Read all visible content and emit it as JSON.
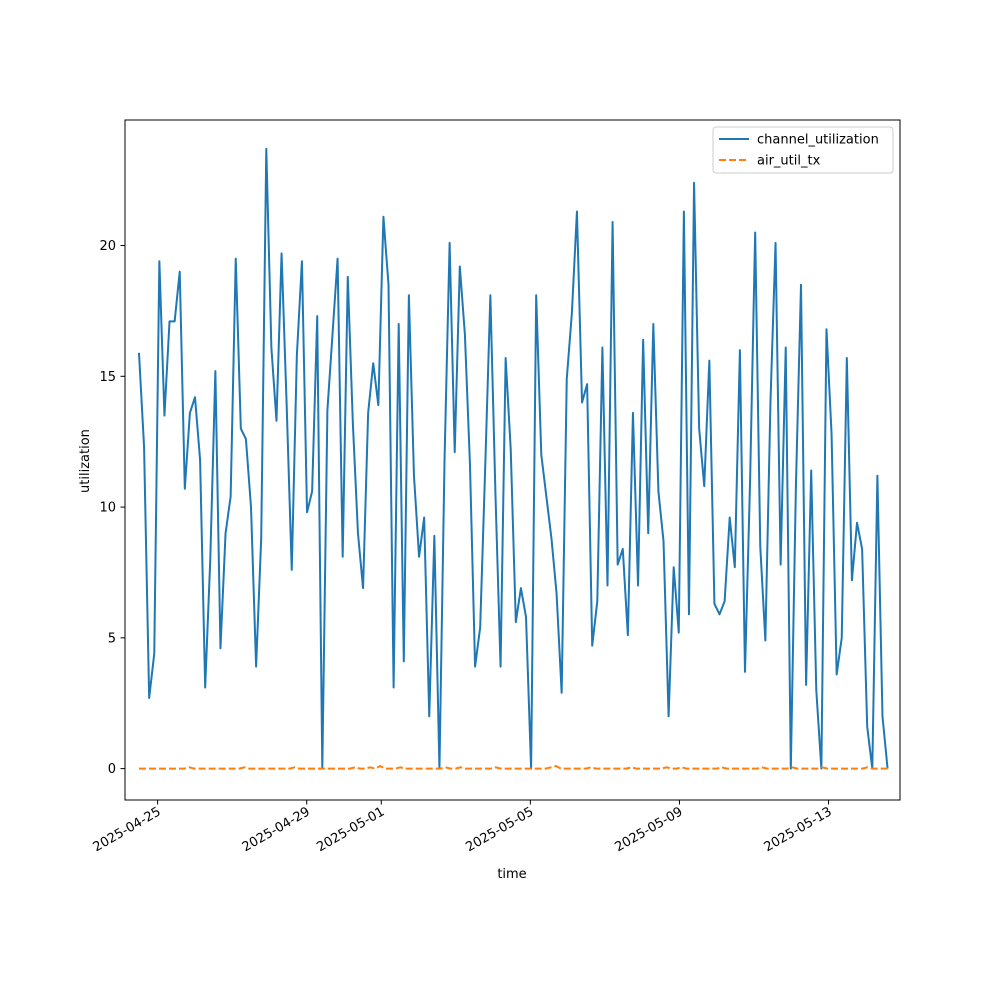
{
  "chart_data": {
    "type": "line",
    "title": "",
    "xlabel": "time",
    "ylabel": "utilization",
    "x_axis_type": "date",
    "x_start": "2025-04-24T12:00",
    "x_end": "2025-05-14T14:00",
    "xlim": [
      "2025-04-24T03:00",
      "2025-05-14T22:00"
    ],
    "ylim": [
      -1.2,
      24.8
    ],
    "x_ticks": [
      "2025-04-25",
      "2025-04-29",
      "2025-05-01",
      "2025-05-05",
      "2025-05-09",
      "2025-05-13"
    ],
    "y_ticks": [
      0,
      5,
      10,
      15,
      20
    ],
    "grid": false,
    "legend_position": "top-right",
    "series": [
      {
        "name": "channel_utilization",
        "color": "#1f77b4",
        "style": "solid",
        "values": [
          15.9,
          12.3,
          2.7,
          4.4,
          19.4,
          13.5,
          17.1,
          17.1,
          19.0,
          10.7,
          13.6,
          14.2,
          11.8,
          3.1,
          8.0,
          15.2,
          4.6,
          9.0,
          10.4,
          19.5,
          13.0,
          12.6,
          10.0,
          3.9,
          8.8,
          23.7,
          16.1,
          13.3,
          19.7,
          13.9,
          7.6,
          15.8,
          19.4,
          9.8,
          10.6,
          17.3,
          0.0,
          13.7,
          16.6,
          19.5,
          8.1,
          18.8,
          13.2,
          9.0,
          6.9,
          13.6,
          15.5,
          13.9,
          21.1,
          18.5,
          3.1,
          17.0,
          4.1,
          18.1,
          11.2,
          8.1,
          9.6,
          2.0,
          8.9,
          0.0,
          11.8,
          20.1,
          12.1,
          19.2,
          16.6,
          11.6,
          3.9,
          5.4,
          11.6,
          18.1,
          10.5,
          3.9,
          15.7,
          12.2,
          5.6,
          6.9,
          5.8,
          0.0,
          18.1,
          12.0,
          10.4,
          8.8,
          6.7,
          2.9,
          14.9,
          17.4,
          21.3,
          14.0,
          14.7,
          4.7,
          6.4,
          16.1,
          7.0,
          20.9,
          7.8,
          8.4,
          5.1,
          13.6,
          7.0,
          16.4,
          9.0,
          17.0,
          10.6,
          8.7,
          2.0,
          7.7,
          5.2,
          21.3,
          5.9,
          22.4,
          13.0,
          10.8,
          15.6,
          6.3,
          5.9,
          6.4,
          9.6,
          7.7,
          16.0,
          3.7,
          11.0,
          20.5,
          8.5,
          4.9,
          14.0,
          20.1,
          7.8,
          16.1,
          0.0,
          10.8,
          18.5,
          3.2,
          11.4,
          3.0,
          0.0,
          16.8,
          12.8,
          3.6,
          5.0,
          15.7,
          7.2,
          9.4,
          8.4,
          1.6,
          0.0,
          11.2,
          2.0,
          0.0
        ]
      },
      {
        "name": "air_util_tx",
        "color": "#ff7f0e",
        "style": "dashed",
        "values": [
          0.0,
          0.0,
          0.0,
          0.0,
          0.0,
          0.0,
          0.0,
          0.0,
          0.0,
          0.0,
          0.05,
          0.0,
          0.0,
          0.0,
          0.0,
          0.0,
          0.0,
          0.0,
          0.0,
          0.0,
          0.0,
          0.05,
          0.0,
          0.0,
          0.0,
          0.0,
          0.0,
          0.0,
          0.0,
          0.0,
          0.0,
          0.05,
          0.0,
          0.0,
          0.0,
          0.0,
          0.0,
          0.0,
          0.0,
          0.0,
          0.0,
          0.0,
          0.0,
          0.05,
          0.0,
          0.0,
          0.05,
          0.0,
          0.1,
          0.0,
          0.0,
          0.0,
          0.05,
          0.0,
          0.0,
          0.0,
          0.0,
          0.0,
          0.0,
          0.0,
          0.0,
          0.05,
          0.0,
          0.0,
          0.05,
          0.0,
          0.0,
          0.0,
          0.0,
          0.0,
          0.0,
          0.05,
          0.0,
          0.0,
          0.0,
          0.0,
          0.0,
          0.0,
          0.0,
          0.0,
          0.0,
          0.0,
          0.05,
          0.1,
          0.0,
          0.0,
          0.0,
          0.0,
          0.0,
          0.0,
          0.05,
          0.0,
          0.0,
          0.0,
          0.0,
          0.0,
          0.0,
          0.0,
          0.05,
          0.0,
          0.0,
          0.0,
          0.0,
          0.0,
          0.0,
          0.05,
          0.0,
          0.0,
          0.05,
          0.0,
          0.0,
          0.0,
          0.0,
          0.0,
          0.0,
          0.0,
          0.05,
          0.0,
          0.0,
          0.0,
          0.0,
          0.0,
          0.0,
          0.0,
          0.05,
          0.0,
          0.0,
          0.0,
          0.0,
          0.0,
          0.05,
          0.0,
          0.0,
          0.0,
          0.0,
          0.0,
          0.05,
          0.0,
          0.0,
          0.0,
          0.0,
          0.0,
          0.0,
          0.0,
          0.0,
          0.05,
          0.0,
          0.0,
          0.0,
          0.0
        ]
      }
    ]
  }
}
